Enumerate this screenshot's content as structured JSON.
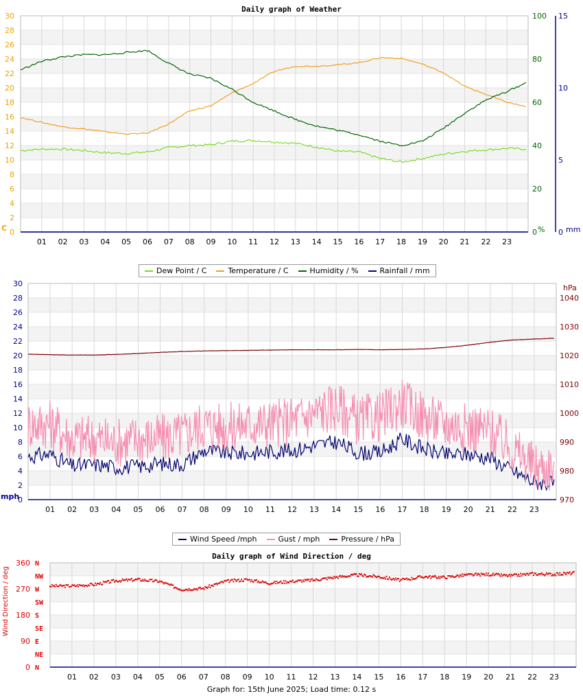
{
  "footer_text": "Graph for: 15th June 2025; Load time: 0.12 s",
  "legend1": [
    {
      "label": "Dew Point / C",
      "color": "#77dd22"
    },
    {
      "label": "Temperature / C",
      "color": "#f0a020"
    },
    {
      "label": "Humidity / %",
      "color": "#006400"
    },
    {
      "label": "Rainfall / mm",
      "color": "#00008b"
    }
  ],
  "legend2": [
    {
      "label": "Wind Speed /mph",
      "color": "#00006e"
    },
    {
      "label": "Gust / mph",
      "color": "#f58fb0"
    },
    {
      "label": "Pressure / hPa",
      "color": "#7a0000"
    }
  ],
  "chart_data": [
    {
      "type": "line",
      "title": "Daily graph of Weather",
      "x_ticks": [
        "01",
        "02",
        "03",
        "04",
        "05",
        "06",
        "07",
        "08",
        "09",
        "10",
        "11",
        "12",
        "13",
        "14",
        "15",
        "16",
        "17",
        "18",
        "19",
        "20",
        "21",
        "22",
        "23"
      ],
      "x_range_hours": [
        0,
        24
      ],
      "axes": {
        "left": {
          "unit_label": "C",
          "color": "#f0a000",
          "range": [
            0,
            30
          ],
          "ticks": [
            0,
            2,
            4,
            6,
            8,
            10,
            12,
            14,
            16,
            18,
            20,
            22,
            24,
            26,
            28,
            30
          ]
        },
        "right1": {
          "unit_label": "%",
          "color": "#006400",
          "range": [
            0,
            100
          ],
          "ticks": [
            0,
            20,
            40,
            60,
            80,
            100
          ]
        },
        "right2": {
          "unit_label": "mm",
          "color": "#00008b",
          "range": [
            0,
            15
          ],
          "ticks": [
            0,
            5,
            10,
            15
          ]
        }
      },
      "grid": true,
      "series": [
        {
          "name": "Dew Point / C",
          "axis": "left",
          "color": "#77dd22",
          "points": [
            [
              0,
              11.3
            ],
            [
              1,
              11.5
            ],
            [
              2,
              11.5
            ],
            [
              3,
              11.3
            ],
            [
              4,
              11.0
            ],
            [
              5,
              10.9
            ],
            [
              6,
              11.1
            ],
            [
              7,
              11.7
            ],
            [
              8,
              12.0
            ],
            [
              9,
              12.1
            ],
            [
              10,
              12.6
            ],
            [
              11,
              12.7
            ],
            [
              12,
              12.5
            ],
            [
              13,
              12.3
            ],
            [
              14,
              11.8
            ],
            [
              15,
              11.2
            ],
            [
              16,
              11.1
            ],
            [
              17,
              10.2
            ],
            [
              18,
              9.7
            ],
            [
              19,
              10.2
            ],
            [
              20,
              10.8
            ],
            [
              21,
              11.2
            ],
            [
              22,
              11.4
            ],
            [
              23,
              11.6
            ],
            [
              23.9,
              11.5
            ]
          ]
        },
        {
          "name": "Temperature / C",
          "axis": "left",
          "color": "#f0a020",
          "points": [
            [
              0,
              15.9
            ],
            [
              1,
              15.2
            ],
            [
              2,
              14.6
            ],
            [
              3,
              14.3
            ],
            [
              4,
              13.9
            ],
            [
              5,
              13.6
            ],
            [
              6,
              13.7
            ],
            [
              7,
              15.0
            ],
            [
              8,
              16.8
            ],
            [
              9,
              17.5
            ],
            [
              10,
              19.3
            ],
            [
              11,
              20.6
            ],
            [
              12,
              22.3
            ],
            [
              13,
              23.0
            ],
            [
              14,
              23.0
            ],
            [
              15,
              23.2
            ],
            [
              16,
              23.5
            ],
            [
              17,
              24.2
            ],
            [
              18,
              24.1
            ],
            [
              19,
              23.3
            ],
            [
              20,
              22.1
            ],
            [
              21,
              20.2
            ],
            [
              22,
              19.1
            ],
            [
              23,
              18.0
            ],
            [
              23.9,
              17.4
            ]
          ]
        },
        {
          "name": "Humidity / %",
          "axis": "right1",
          "color": "#006400",
          "points": [
            [
              0,
              75
            ],
            [
              1,
              79
            ],
            [
              2,
              81
            ],
            [
              3,
              82
            ],
            [
              4,
              82
            ],
            [
              5,
              83
            ],
            [
              6,
              84
            ],
            [
              7,
              78
            ],
            [
              8,
              73
            ],
            [
              9,
              71
            ],
            [
              10,
              66
            ],
            [
              11,
              60
            ],
            [
              12,
              56
            ],
            [
              13,
              52
            ],
            [
              14,
              49
            ],
            [
              15,
              47
            ],
            [
              16,
              45
            ],
            [
              17,
              42
            ],
            [
              18,
              40
            ],
            [
              19,
              42
            ],
            [
              20,
              48
            ],
            [
              21,
              55
            ],
            [
              22,
              61
            ],
            [
              23,
              65
            ],
            [
              23.9,
              69
            ]
          ]
        },
        {
          "name": "Rainfall / mm",
          "axis": "right2",
          "color": "#00008b",
          "points": [
            [
              0,
              0
            ],
            [
              23.9,
              0
            ]
          ]
        }
      ]
    },
    {
      "type": "line",
      "title": "",
      "x_ticks": [
        "01",
        "02",
        "03",
        "04",
        "05",
        "06",
        "07",
        "08",
        "09",
        "10",
        "11",
        "12",
        "13",
        "14",
        "15",
        "16",
        "17",
        "18",
        "19",
        "20",
        "21",
        "22",
        "23"
      ],
      "x_range_hours": [
        0,
        24
      ],
      "axes": {
        "left": {
          "unit_label": "mph",
          "color": "#00008b",
          "range": [
            0,
            30
          ],
          "ticks": [
            0,
            2,
            4,
            6,
            8,
            10,
            12,
            14,
            16,
            18,
            20,
            22,
            24,
            26,
            28,
            30
          ]
        },
        "right": {
          "unit_label": "hPa",
          "color": "#7a0000",
          "range": [
            970,
            1045
          ],
          "ticks": [
            970,
            980,
            990,
            1000,
            1010,
            1020,
            1030,
            1040
          ]
        }
      },
      "grid": true,
      "series": [
        {
          "name": "Wind Speed /mph",
          "axis": "left",
          "color": "#00006e",
          "points": [
            [
              0,
              6.0
            ],
            [
              1,
              6.3
            ],
            [
              2,
              4.6
            ],
            [
              3,
              4.9
            ],
            [
              4,
              4.5
            ],
            [
              5,
              4.6
            ],
            [
              6,
              5.0
            ],
            [
              7,
              4.9
            ],
            [
              8,
              6.8
            ],
            [
              9,
              6.5
            ],
            [
              10,
              6.4
            ],
            [
              11,
              6.7
            ],
            [
              12,
              6.8
            ],
            [
              13,
              7.5
            ],
            [
              14,
              8.0
            ],
            [
              15,
              6.5
            ],
            [
              16,
              6.5
            ],
            [
              17,
              8.4
            ],
            [
              18,
              7.0
            ],
            [
              19,
              6.2
            ],
            [
              20,
              6.3
            ],
            [
              21,
              5.8
            ],
            [
              22,
              4.0
            ],
            [
              23,
              2.4
            ],
            [
              23.9,
              2.2
            ]
          ]
        },
        {
          "name": "Gust / mph",
          "axis": "left",
          "color": "#f58fb0",
          "points": [
            [
              0,
              10.5
            ],
            [
              1,
              10.5
            ],
            [
              2,
              8.5
            ],
            [
              3,
              8.5
            ],
            [
              4,
              8.0
            ],
            [
              5,
              8.5
            ],
            [
              6,
              8.5
            ],
            [
              7,
              9.0
            ],
            [
              8,
              10.5
            ],
            [
              9,
              10.0
            ],
            [
              10,
              10.5
            ],
            [
              11,
              10.5
            ],
            [
              12,
              11.0
            ],
            [
              13,
              12.0
            ],
            [
              14,
              13.0
            ],
            [
              15,
              11.0
            ],
            [
              16,
              11.5
            ],
            [
              17,
              13.5
            ],
            [
              18,
              11.5
            ],
            [
              19,
              10.5
            ],
            [
              20,
              10.0
            ],
            [
              21,
              9.5
            ],
            [
              22,
              7.0
            ],
            [
              23,
              4.5
            ],
            [
              23.9,
              4.5
            ]
          ]
        },
        {
          "name": "Pressure / hPa",
          "axis": "right",
          "color": "#7a0000",
          "points": [
            [
              0,
              1020.5
            ],
            [
              1,
              1020.3
            ],
            [
              2,
              1020.2
            ],
            [
              3,
              1020.2
            ],
            [
              4,
              1020.4
            ],
            [
              5,
              1020.7
            ],
            [
              6,
              1021.1
            ],
            [
              7,
              1021.4
            ],
            [
              8,
              1021.6
            ],
            [
              9,
              1021.7
            ],
            [
              10,
              1021.8
            ],
            [
              11,
              1021.9
            ],
            [
              12,
              1022.0
            ],
            [
              13,
              1022.0
            ],
            [
              14,
              1022.0
            ],
            [
              15,
              1022.1
            ],
            [
              16,
              1022.0
            ],
            [
              17,
              1022.1
            ],
            [
              18,
              1022.3
            ],
            [
              19,
              1022.8
            ],
            [
              20,
              1023.6
            ],
            [
              21,
              1024.6
            ],
            [
              22,
              1025.4
            ],
            [
              23,
              1025.7
            ],
            [
              23.9,
              1026.0
            ]
          ]
        }
      ]
    },
    {
      "type": "scatter",
      "title": "Daily graph of Wind Direction / deg",
      "x_ticks": [
        "01",
        "02",
        "03",
        "04",
        "05",
        "06",
        "07",
        "08",
        "09",
        "10",
        "11",
        "12",
        "13",
        "14",
        "15",
        "16",
        "17",
        "18",
        "19",
        "20",
        "21",
        "22",
        "23"
      ],
      "x_range_hours": [
        0,
        24
      ],
      "ylabel": "Wind Direction / deg",
      "axes": {
        "left": {
          "color": "#dd0000",
          "range": [
            0,
            360
          ],
          "ticks": [
            0,
            90,
            180,
            270,
            360
          ]
        }
      },
      "compass_labels": [
        "N",
        "NW",
        "W",
        "SW",
        "S",
        "SE",
        "E",
        "NE",
        "N"
      ],
      "grid": true,
      "series": [
        {
          "name": "Wind Direction",
          "color": "#dd0000",
          "points": [
            [
              0,
              280
            ],
            [
              1,
              280
            ],
            [
              2,
              285
            ],
            [
              3,
              298
            ],
            [
              4,
              302
            ],
            [
              5,
              296
            ],
            [
              6,
              268
            ],
            [
              7,
              272
            ],
            [
              8,
              296
            ],
            [
              9,
              302
            ],
            [
              10,
              290
            ],
            [
              11,
              296
            ],
            [
              12,
              300
            ],
            [
              13,
              310
            ],
            [
              14,
              318
            ],
            [
              15,
              312
            ],
            [
              16,
              300
            ],
            [
              17,
              312
            ],
            [
              18,
              310
            ],
            [
              19,
              318
            ],
            [
              20,
              320
            ],
            [
              21,
              315
            ],
            [
              22,
              322
            ],
            [
              23,
              320
            ],
            [
              23.9,
              325
            ]
          ]
        }
      ]
    }
  ]
}
